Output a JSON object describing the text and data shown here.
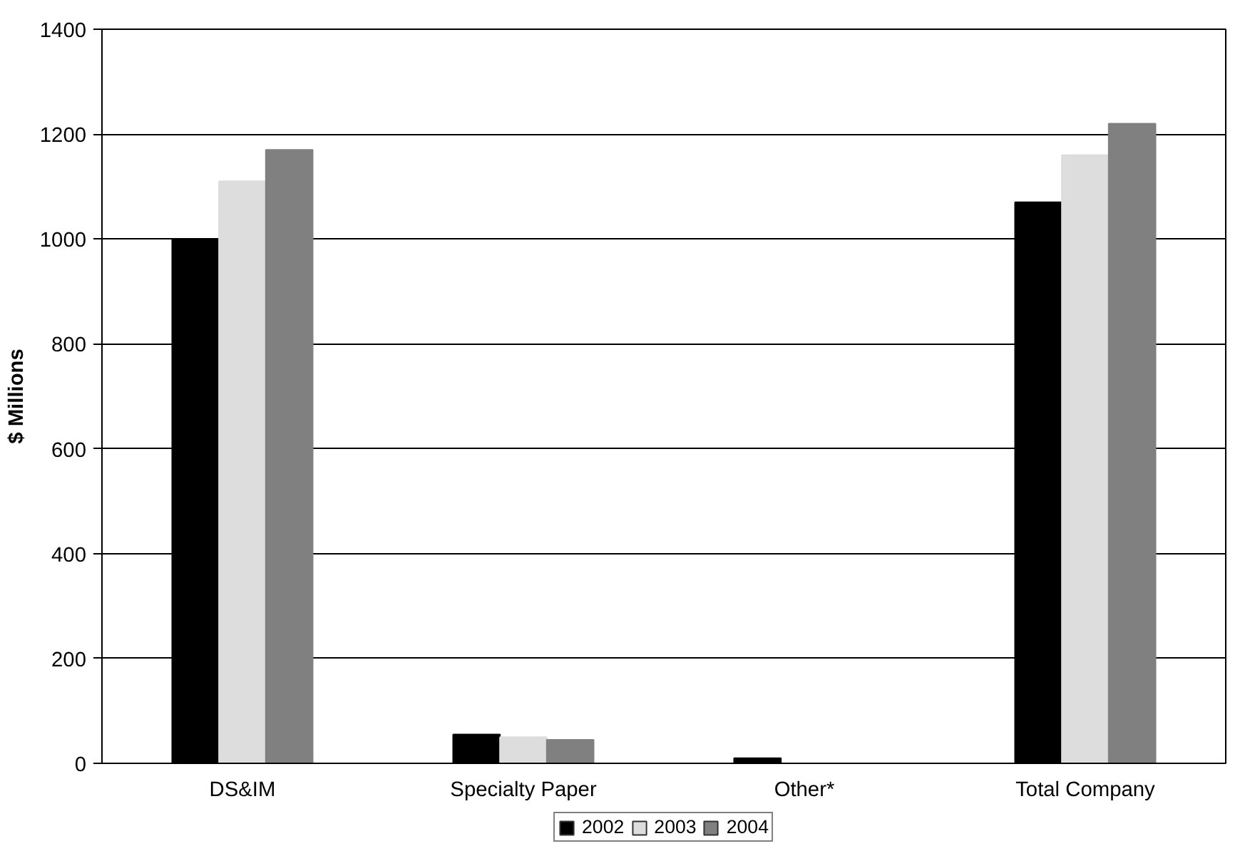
{
  "chart_data": {
    "type": "bar",
    "ylabel": "$ Millions",
    "categories": [
      "DS&IM",
      "Specialty Paper",
      "Other*",
      "Total Company"
    ],
    "series": [
      {
        "name": "2002",
        "color": "#000000",
        "values": [
          1000,
          55,
          10,
          1070
        ]
      },
      {
        "name": "2003",
        "color": "#dddddd",
        "values": [
          1110,
          50,
          0,
          1160
        ]
      },
      {
        "name": "2004",
        "color": "#808080",
        "values": [
          1170,
          45,
          0,
          1220
        ]
      }
    ],
    "ylim": [
      0,
      1400
    ],
    "yticks": [
      0,
      200,
      400,
      600,
      800,
      1000,
      1200,
      1400
    ],
    "grid": "y",
    "legend": "bottom"
  }
}
